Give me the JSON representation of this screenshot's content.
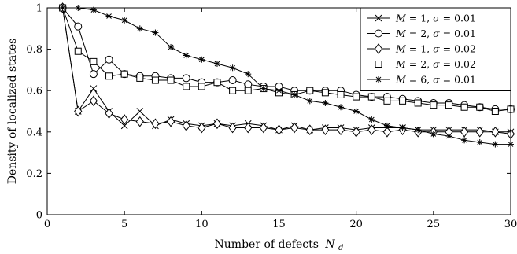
{
  "chart_data": {
    "type": "line",
    "title": "",
    "xlabel": "Number of defects",
    "xlabel_symbol": "N",
    "xlabel_subscript": "d",
    "ylabel": "Density of localized states",
    "xlim": [
      0,
      30
    ],
    "ylim": [
      0,
      1
    ],
    "xticks": [
      0,
      5,
      10,
      15,
      20,
      25,
      30
    ],
    "yticks": [
      0,
      0.2,
      0.4,
      0.6,
      0.8,
      1
    ],
    "ytick_labels": [
      "0",
      "0.2",
      "0.4",
      "0.6",
      "0.8",
      "1"
    ],
    "grid": false,
    "legend_position": "top-right",
    "x": [
      1,
      2,
      3,
      4,
      5,
      6,
      7,
      8,
      9,
      10,
      11,
      12,
      13,
      14,
      15,
      16,
      17,
      18,
      19,
      20,
      21,
      22,
      23,
      24,
      25,
      26,
      27,
      28,
      29,
      30
    ],
    "series": [
      {
        "name": "M = 1, σ = 0.01",
        "legend": {
          "m": "M",
          "mval": " = 1, ",
          "s": "σ",
          "sval": " = 0.01"
        },
        "marker": "x",
        "values": [
          1.0,
          0.5,
          0.61,
          0.5,
          0.43,
          0.5,
          0.43,
          0.46,
          0.44,
          0.43,
          0.44,
          0.43,
          0.44,
          0.43,
          0.41,
          0.43,
          0.41,
          0.42,
          0.42,
          0.41,
          0.42,
          0.42,
          0.42,
          0.41,
          0.41,
          0.41,
          0.41,
          0.41,
          0.4,
          0.4
        ]
      },
      {
        "name": "M = 2, σ = 0.01",
        "legend": {
          "m": "M",
          "mval": " = 2, ",
          "s": "σ",
          "sval": " = 0.01"
        },
        "marker": "circle",
        "values": [
          1.0,
          0.91,
          0.68,
          0.75,
          0.68,
          0.67,
          0.67,
          0.66,
          0.66,
          0.64,
          0.64,
          0.65,
          0.63,
          0.62,
          0.62,
          0.6,
          0.6,
          0.6,
          0.6,
          0.58,
          0.57,
          0.57,
          0.56,
          0.55,
          0.54,
          0.54,
          0.53,
          0.52,
          0.51,
          0.51
        ]
      },
      {
        "name": "M = 1, σ = 0.02",
        "legend": {
          "m": "M",
          "mval": " = 1, ",
          "s": "σ",
          "sval": " = 0.02"
        },
        "marker": "diamond",
        "values": [
          1.0,
          0.5,
          0.55,
          0.49,
          0.46,
          0.45,
          0.44,
          0.45,
          0.43,
          0.42,
          0.44,
          0.42,
          0.42,
          0.42,
          0.41,
          0.42,
          0.41,
          0.41,
          0.41,
          0.4,
          0.41,
          0.4,
          0.41,
          0.4,
          0.4,
          0.4,
          0.4,
          0.4,
          0.4,
          0.39
        ]
      },
      {
        "name": "M = 2, σ = 0.02",
        "legend": {
          "m": "M",
          "mval": " = 2, ",
          "s": "σ",
          "sval": " = 0.02"
        },
        "marker": "square",
        "values": [
          1.0,
          0.79,
          0.74,
          0.67,
          0.68,
          0.66,
          0.65,
          0.65,
          0.62,
          0.62,
          0.64,
          0.6,
          0.6,
          0.61,
          0.59,
          0.58,
          0.6,
          0.59,
          0.58,
          0.57,
          0.57,
          0.55,
          0.55,
          0.54,
          0.53,
          0.53,
          0.52,
          0.52,
          0.5,
          0.51
        ]
      },
      {
        "name": "M = 6, σ = 0.01",
        "legend": {
          "m": "M",
          "mval": " = 6, ",
          "s": "σ",
          "sval": " = 0.01"
        },
        "marker": "asterisk",
        "values": [
          1.0,
          1.0,
          0.99,
          0.96,
          0.94,
          0.9,
          0.88,
          0.81,
          0.77,
          0.75,
          0.73,
          0.71,
          0.68,
          0.61,
          0.6,
          0.58,
          0.55,
          0.54,
          0.52,
          0.5,
          0.46,
          0.43,
          0.42,
          0.41,
          0.39,
          0.38,
          0.36,
          0.35,
          0.34,
          0.34
        ]
      }
    ]
  }
}
